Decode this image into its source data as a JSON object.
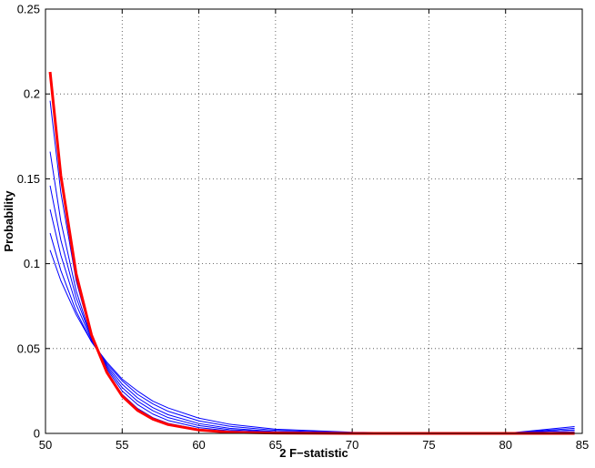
{
  "chart_data": {
    "type": "line",
    "xlabel": "2 F−statistic",
    "ylabel": "Probability",
    "xlim": [
      50,
      85
    ],
    "ylim": [
      0,
      0.25
    ],
    "xticks": [
      50,
      55,
      60,
      65,
      70,
      75,
      80,
      85
    ],
    "yticks": [
      0,
      0.05,
      0.1,
      0.15,
      0.2,
      0.25
    ],
    "grid": true,
    "x": [
      50.3,
      51,
      52,
      53,
      54,
      55,
      56,
      57,
      58,
      60,
      62,
      65,
      70,
      75,
      80,
      84.5
    ],
    "series": [
      {
        "color": "#0000ff",
        "values": [
          0.196,
          0.142,
          0.09,
          0.057,
          0.036,
          0.023,
          0.0147,
          0.0093,
          0.0059,
          0.0024,
          0.001,
          0.0002,
          0,
          0,
          0,
          0
        ]
      },
      {
        "color": "#0000ff",
        "values": [
          0.166,
          0.125,
          0.084,
          0.056,
          0.038,
          0.025,
          0.017,
          0.0114,
          0.0076,
          0.0034,
          0.0015,
          0.0005,
          0.0001,
          0,
          0,
          0.001
        ]
      },
      {
        "color": "#0000ff",
        "values": [
          0.146,
          0.114,
          0.08,
          0.056,
          0.039,
          0.027,
          0.019,
          0.0134,
          0.0093,
          0.0046,
          0.0022,
          0.0008,
          0.0001,
          0,
          0,
          0.002
        ]
      },
      {
        "color": "#0000ff",
        "values": [
          0.132,
          0.105,
          0.076,
          0.055,
          0.04,
          0.029,
          0.021,
          0.0152,
          0.011,
          0.0058,
          0.003,
          0.0011,
          0.0002,
          0.0001,
          0,
          0.003
        ]
      },
      {
        "color": "#0000ff",
        "values": [
          0.118,
          0.096,
          0.072,
          0.054,
          0.041,
          0.031,
          0.023,
          0.0174,
          0.013,
          0.0074,
          0.0042,
          0.0018,
          0.0004,
          0.0001,
          0,
          0.004
        ]
      },
      {
        "color": "#0000ff",
        "values": [
          0.108,
          0.09,
          0.07,
          0.054,
          0.042,
          0.032,
          0.025,
          0.019,
          0.015,
          0.009,
          0.0054,
          0.0025,
          0.0007,
          0.0002,
          0.0001,
          0.002
        ]
      },
      {
        "color": "#ff0000",
        "values": [
          0.213,
          0.152,
          0.094,
          0.058,
          0.036,
          0.022,
          0.0136,
          0.0084,
          0.0052,
          0.002,
          0.0007,
          0.0002,
          0,
          0,
          0,
          0
        ]
      }
    ]
  }
}
